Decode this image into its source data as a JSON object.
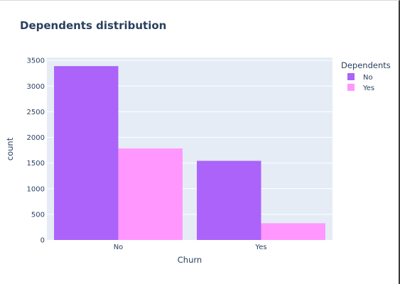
{
  "chart_data": {
    "type": "bar",
    "title": "Dependents distribution",
    "xlabel": "Churn",
    "ylabel": "count",
    "categories": [
      "No",
      "Yes"
    ],
    "series": [
      {
        "name": "No",
        "values": [
          3390,
          1543
        ],
        "color": "#ab63fa"
      },
      {
        "name": "Yes",
        "values": [
          1784,
          326
        ],
        "color": "#ff97ff"
      }
    ],
    "ylim": [
      0,
      3558
    ],
    "yticks": [
      0,
      500,
      1000,
      1500,
      2000,
      2500,
      3000,
      3500
    ],
    "ytick_labels": [
      "0",
      "500",
      "1000",
      "1500",
      "2000",
      "2500",
      "3000",
      "3500"
    ],
    "legend": {
      "title": "Dependents",
      "placement": "top-right"
    },
    "grid": true,
    "plot_background": "#e5ecf6",
    "text_color": "#2a3f5f"
  }
}
